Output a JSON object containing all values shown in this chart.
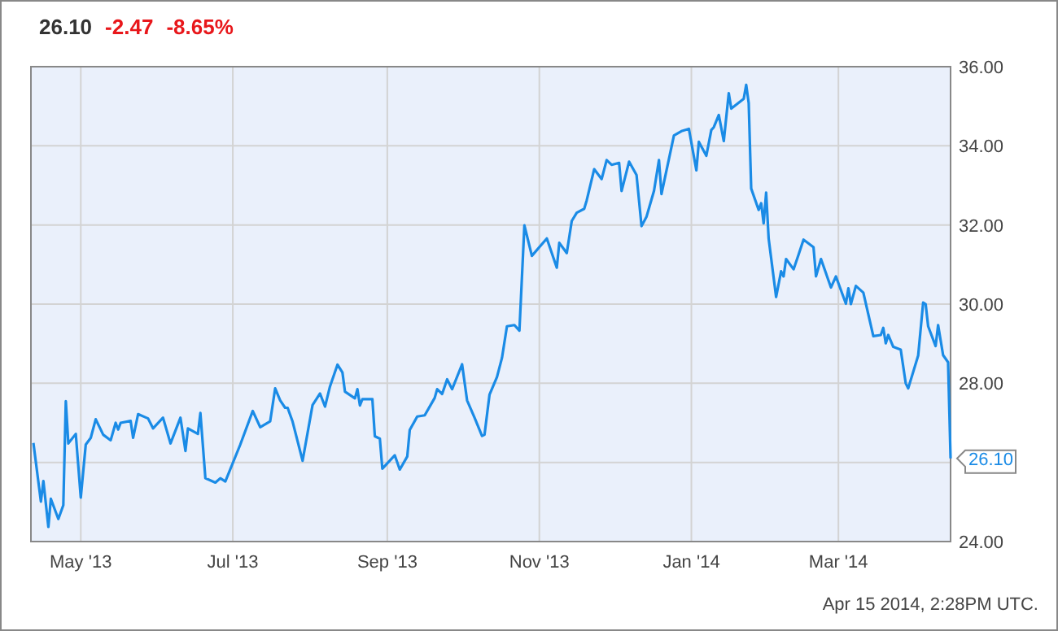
{
  "chart_data": {
    "type": "line",
    "title": "26.10",
    "subtitle": "-2.47 -8.65%",
    "x": [
      "2013-04-12",
      "2013-04-15",
      "2013-04-16",
      "2013-04-18",
      "2013-04-19",
      "2013-04-22",
      "2013-04-24",
      "2013-04-25",
      "2013-04-26",
      "2013-04-29",
      "2013-05-01",
      "2013-05-03",
      "2013-05-05",
      "2013-05-07",
      "2013-05-10",
      "2013-05-13",
      "2013-05-15",
      "2013-05-16",
      "2013-05-17",
      "2013-05-21",
      "2013-05-22",
      "2013-05-24",
      "2013-05-28",
      "2013-05-30",
      "2013-06-03",
      "2013-06-06",
      "2013-06-10",
      "2013-06-12",
      "2013-06-13",
      "2013-06-17",
      "2013-06-18",
      "2013-06-20",
      "2013-06-24",
      "2013-06-26",
      "2013-06-28",
      "2013-07-04",
      "2013-07-09",
      "2013-07-12",
      "2013-07-16",
      "2013-07-18",
      "2013-07-20",
      "2013-07-22",
      "2013-07-23",
      "2013-07-25",
      "2013-07-29",
      "2013-08-02",
      "2013-08-05",
      "2013-08-07",
      "2013-08-09",
      "2013-08-12",
      "2013-08-14",
      "2013-08-15",
      "2013-08-19",
      "2013-08-20",
      "2013-08-21",
      "2013-08-22",
      "2013-08-26",
      "2013-08-27",
      "2013-08-29",
      "2013-08-30",
      "2013-09-04",
      "2013-09-06",
      "2013-09-09",
      "2013-09-10",
      "2013-09-13",
      "2013-09-16",
      "2013-09-20",
      "2013-09-21",
      "2013-09-23",
      "2013-09-25",
      "2013-09-27",
      "2013-10-01",
      "2013-10-03",
      "2013-10-06",
      "2013-10-09",
      "2013-10-10",
      "2013-10-12",
      "2013-10-15",
      "2013-10-17",
      "2013-10-19",
      "2013-10-22",
      "2013-10-24",
      "2013-10-26",
      "2013-10-29",
      "2013-11-04",
      "2013-11-08",
      "2013-11-09",
      "2013-11-12",
      "2013-11-14",
      "2013-11-16",
      "2013-11-19",
      "2013-11-20",
      "2013-11-23",
      "2013-11-26",
      "2013-11-28",
      "2013-11-30",
      "2013-12-03",
      "2013-12-04",
      "2013-12-07",
      "2013-12-10",
      "2013-12-12",
      "2013-12-14",
      "2013-12-17",
      "2013-12-19",
      "2013-12-20",
      "2013-12-25",
      "2013-12-28",
      "2013-12-31",
      "2014-01-03",
      "2014-01-04",
      "2014-01-07",
      "2014-01-09",
      "2014-01-10",
      "2014-01-12",
      "2014-01-14",
      "2014-01-16",
      "2014-01-17",
      "2014-01-22",
      "2014-01-23",
      "2014-01-24",
      "2014-01-25",
      "2014-01-28",
      "2014-01-29",
      "2014-01-30",
      "2014-01-31",
      "2014-02-01",
      "2014-02-04",
      "2014-02-06",
      "2014-02-07",
      "2014-02-08",
      "2014-02-11",
      "2014-02-13",
      "2014-02-15",
      "2014-02-19",
      "2014-02-20",
      "2014-02-22",
      "2014-02-26",
      "2014-02-28",
      "2014-03-04",
      "2014-03-05",
      "2014-03-06",
      "2014-03-08",
      "2014-03-11",
      "2014-03-15",
      "2014-03-18",
      "2014-03-19",
      "2014-03-20",
      "2014-03-21",
      "2014-03-23",
      "2014-03-26",
      "2014-03-28",
      "2014-03-29",
      "2014-04-02",
      "2014-04-04",
      "2014-04-05",
      "2014-04-06",
      "2014-04-09",
      "2014-04-10",
      "2014-04-12",
      "2014-04-14",
      "2014-04-15"
    ],
    "series": [
      {
        "color": "#1a8be6",
        "values": [
          26.49,
          25.01,
          25.53,
          24.37,
          25.08,
          24.57,
          24.92,
          27.55,
          26.48,
          26.72,
          25.11,
          26.45,
          26.62,
          27.09,
          26.7,
          26.56,
          27.0,
          26.83,
          27.0,
          27.05,
          26.62,
          27.22,
          27.11,
          26.86,
          27.13,
          26.48,
          27.13,
          26.29,
          26.86,
          26.72,
          27.25,
          25.6,
          25.49,
          25.6,
          25.52,
          26.45,
          27.3,
          26.89,
          27.04,
          27.87,
          27.57,
          27.38,
          27.38,
          27.03,
          26.04,
          27.45,
          27.74,
          27.41,
          27.92,
          28.47,
          28.27,
          27.79,
          27.62,
          27.85,
          27.44,
          27.6,
          27.6,
          26.66,
          26.6,
          25.84,
          26.18,
          25.82,
          26.15,
          26.82,
          27.16,
          27.19,
          27.63,
          27.85,
          27.73,
          28.1,
          27.85,
          28.48,
          27.57,
          27.13,
          26.67,
          26.7,
          27.71,
          28.16,
          28.64,
          29.44,
          29.47,
          29.33,
          31.99,
          31.22,
          31.66,
          30.92,
          31.55,
          31.29,
          32.1,
          32.31,
          32.41,
          32.62,
          33.41,
          33.16,
          33.64,
          33.52,
          33.57,
          32.86,
          33.6,
          33.26,
          31.97,
          32.21,
          32.86,
          33.64,
          32.78,
          34.26,
          34.37,
          34.43,
          33.38,
          34.1,
          33.75,
          34.4,
          34.47,
          34.78,
          34.12,
          35.33,
          34.94,
          35.19,
          35.54,
          35.08,
          32.92,
          32.38,
          32.55,
          32.04,
          32.82,
          31.66,
          30.18,
          30.83,
          30.7,
          31.14,
          30.88,
          31.25,
          31.63,
          31.44,
          30.7,
          31.14,
          30.42,
          30.7,
          30.01,
          30.4,
          30.0,
          30.46,
          30.29,
          29.19,
          29.22,
          29.4,
          29.01,
          29.22,
          28.92,
          28.85,
          28.0,
          27.87,
          28.7,
          30.04,
          30.0,
          29.44,
          28.94,
          29.47,
          28.71,
          28.53,
          26.1
        ]
      }
    ],
    "xlim": [
      "2013-04-11",
      "2014-04-15"
    ],
    "xticks": [
      {
        "value": "2013-05-01",
        "label": "May '13"
      },
      {
        "value": "2013-07-01",
        "label": "Jul '13"
      },
      {
        "value": "2013-09-01",
        "label": "Sep '13"
      },
      {
        "value": "2013-11-01",
        "label": "Nov '13"
      },
      {
        "value": "2014-01-01",
        "label": "Jan '14"
      },
      {
        "value": "2014-03-01",
        "label": "Mar '14"
      }
    ],
    "ylim": [
      24,
      36
    ],
    "yticks": [
      {
        "value": 24,
        "label": "24.00"
      },
      {
        "value": 26,
        "label": null
      },
      {
        "value": 28,
        "label": "28.00"
      },
      {
        "value": 30,
        "label": "30.00"
      },
      {
        "value": 32,
        "label": "32.00"
      },
      {
        "value": 34,
        "label": "34.00"
      },
      {
        "value": 36,
        "label": "36.00"
      }
    ],
    "grid": true,
    "annotations": [
      {
        "text": "26.10",
        "x": "2014-04-15",
        "y": 26.1
      },
      "Apr 15 2014, 2:28PM UTC."
    ]
  }
}
